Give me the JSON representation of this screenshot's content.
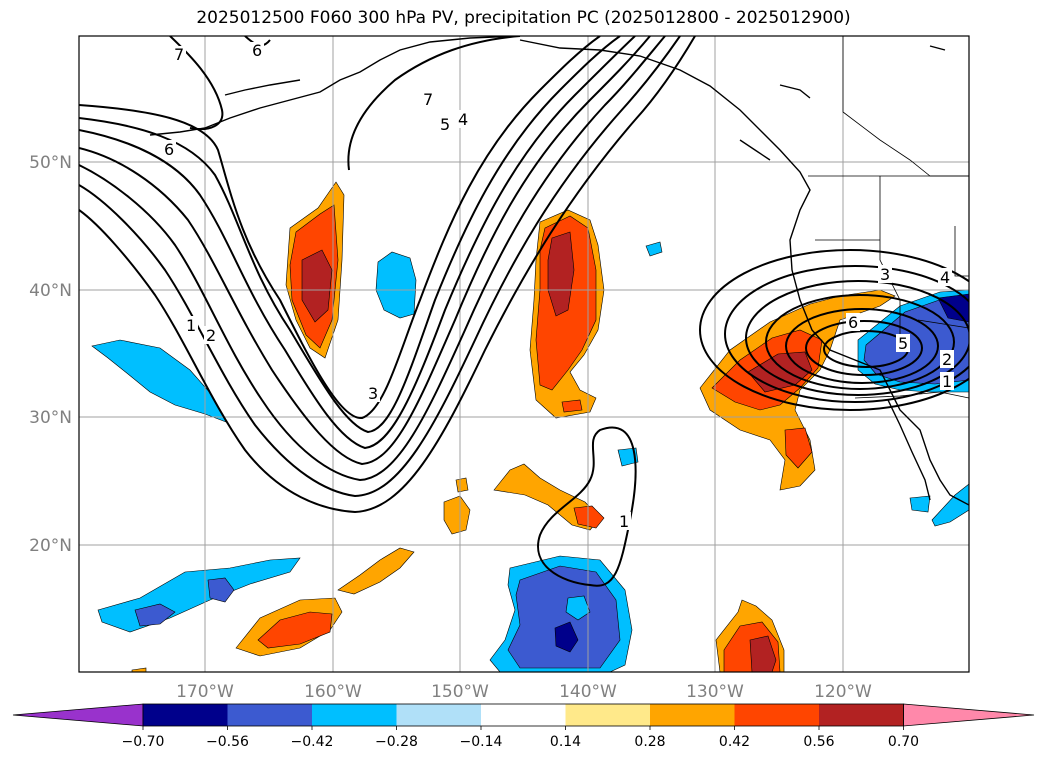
{
  "title": "2025012500 F060 300 hPa PV, precipitation PC (2025012800 - 2025012900)",
  "map": {
    "lat_labels": [
      "50°N",
      "40°N",
      "30°N",
      "20°N"
    ],
    "lon_labels": [
      "170°W",
      "160°W",
      "150°W",
      "140°W",
      "130°W",
      "120°W"
    ],
    "contour_labels": [
      "7",
      "6",
      "7",
      "5",
      "4",
      "6",
      "1",
      "2",
      "3",
      "3",
      "4",
      "6",
      "5",
      "2",
      "1",
      "1"
    ]
  },
  "colorbar": {
    "ticks": [
      "−0.70",
      "−0.56",
      "−0.42",
      "−0.28",
      "−0.14",
      "0.14",
      "0.28",
      "0.42",
      "0.56",
      "0.70"
    ],
    "colors": [
      "#9932cc",
      "#00008b",
      "#3c5ad0",
      "#00bfff",
      "#b0e0f8",
      "#ffffff",
      "#ffe98a",
      "#ffa500",
      "#ff4500",
      "#b22222",
      "#ff88aa"
    ]
  }
}
